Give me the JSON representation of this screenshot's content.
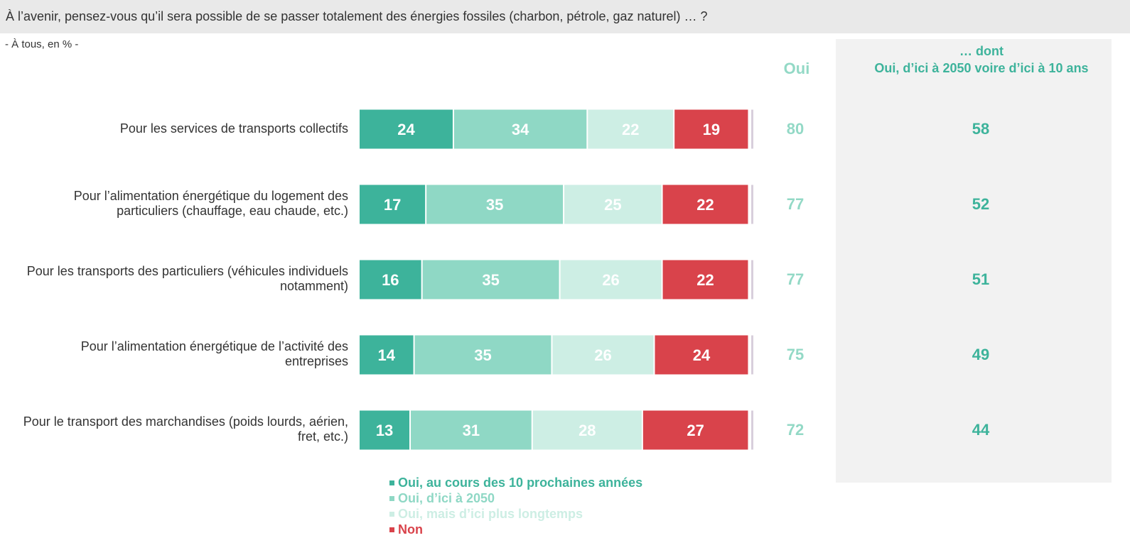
{
  "title": "À l’avenir, pensez-vous qu’il sera possible de se passer totalement des énergies fossiles (charbon, pétrole, gaz naturel) … ?",
  "subtitle": "- À tous, en % -",
  "oui_header": "Oui",
  "dont_header": {
    "line1": "… dont",
    "line2": "Oui, d’ici à 2050 voire d’ici à 10 ans"
  },
  "colors": {
    "dark_green": "#3db39b",
    "mid_green": "#8fd8c5",
    "light_green": "#cdeee4",
    "red": "#d9434b",
    "grey_tail": "#d8cfdc"
  },
  "chart_data": {
    "type": "bar",
    "orientation": "horizontal",
    "stacked": true,
    "categories": [
      [
        "Pour les services de transports collectifs"
      ],
      [
        "Pour l’alimentation énergétique du logement des",
        "particuliers (chauffage, eau chaude, etc.)"
      ],
      [
        "Pour les transports des particuliers (véhicules individuels",
        "notamment)"
      ],
      [
        "Pour l’alimentation énergétique de l’activité des",
        "entreprises"
      ],
      [
        "Pour le transport des marchandises (poids lourds, aérien,",
        "fret, etc.)"
      ]
    ],
    "series": [
      {
        "name": "Oui, au cours des 10 prochaines années",
        "color": "#3db39b",
        "label_color": "#ffffff",
        "values": [
          24,
          17,
          16,
          14,
          13
        ]
      },
      {
        "name": "Oui, d’ici à 2050",
        "color": "#8fd8c5",
        "label_color": "#ffffff",
        "values": [
          34,
          35,
          35,
          35,
          31
        ]
      },
      {
        "name": "Oui, mais d’ici plus longtemps",
        "color": "#cdeee4",
        "label_color": "#ffffff",
        "values": [
          22,
          25,
          26,
          26,
          28
        ]
      },
      {
        "name": "Non",
        "color": "#d9434b",
        "label_color": "#ffffff",
        "values": [
          19,
          22,
          22,
          24,
          27
        ]
      }
    ],
    "oui_totals": [
      80,
      77,
      77,
      75,
      72
    ],
    "dont_values": [
      58,
      52,
      51,
      49,
      44
    ],
    "legend_position": "bottom"
  }
}
